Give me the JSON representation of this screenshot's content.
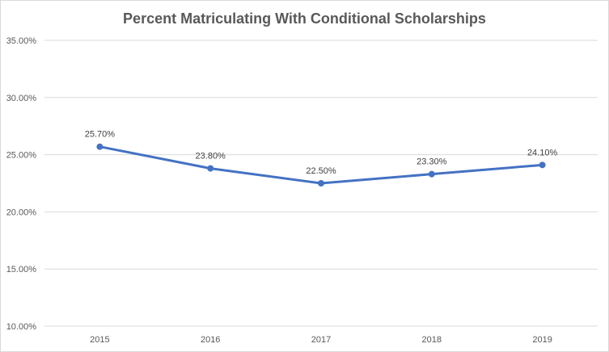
{
  "chart_data": {
    "type": "line",
    "title": "Percent Matriculating With Conditional Scholarships",
    "xlabel": "",
    "ylabel": "",
    "categories": [
      "2015",
      "2016",
      "2017",
      "2018",
      "2019"
    ],
    "series": [
      {
        "values": [
          25.7,
          23.8,
          22.5,
          23.3,
          24.1
        ],
        "data_labels": [
          "25.70%",
          "23.80%",
          "22.50%",
          "23.30%",
          "24.10%"
        ],
        "color": "#4472c4"
      }
    ],
    "ylim": [
      10,
      35
    ],
    "y_ticks": [
      10,
      15,
      20,
      25,
      30,
      35
    ],
    "y_tick_labels": [
      "10.00%",
      "15.00%",
      "20.00%",
      "25.00%",
      "30.00%",
      "35.00%"
    ],
    "grid": true,
    "legend": "none"
  }
}
